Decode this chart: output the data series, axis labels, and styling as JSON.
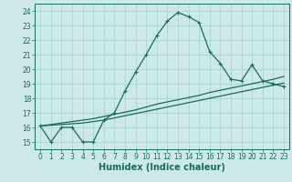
{
  "xlabel": "Humidex (Indice chaleur)",
  "bg_color": "#cce8e8",
  "grid_color": "#aad4d4",
  "line_color": "#1a6b5a",
  "xlim": [
    -0.5,
    23.5
  ],
  "ylim": [
    14.5,
    24.5
  ],
  "xticks": [
    0,
    1,
    2,
    3,
    4,
    5,
    6,
    7,
    8,
    9,
    10,
    11,
    12,
    13,
    14,
    15,
    16,
    17,
    18,
    19,
    20,
    21,
    22,
    23
  ],
  "yticks": [
    15,
    16,
    17,
    18,
    19,
    20,
    21,
    22,
    23,
    24
  ],
  "main_y": [
    16.1,
    15.0,
    16.0,
    16.0,
    15.0,
    15.0,
    16.5,
    17.0,
    18.5,
    19.8,
    21.0,
    22.3,
    23.3,
    23.9,
    23.6,
    23.2,
    21.2,
    20.4,
    19.3,
    19.2,
    20.3,
    19.2,
    19.0,
    18.8
  ],
  "trend1_y": [
    16.1,
    16.15,
    16.2,
    16.25,
    16.3,
    16.4,
    16.5,
    16.65,
    16.8,
    16.95,
    17.1,
    17.25,
    17.4,
    17.55,
    17.7,
    17.85,
    18.0,
    18.15,
    18.3,
    18.45,
    18.6,
    18.75,
    18.9,
    19.05
  ],
  "trend2_y": [
    16.1,
    16.2,
    16.3,
    16.4,
    16.5,
    16.6,
    16.75,
    16.9,
    17.05,
    17.2,
    17.4,
    17.6,
    17.75,
    17.9,
    18.05,
    18.2,
    18.4,
    18.55,
    18.7,
    18.85,
    19.0,
    19.15,
    19.3,
    19.5
  ],
  "font_color": "#1a6b5a",
  "tick_fontsize": 5.5,
  "label_fontsize": 7.0
}
